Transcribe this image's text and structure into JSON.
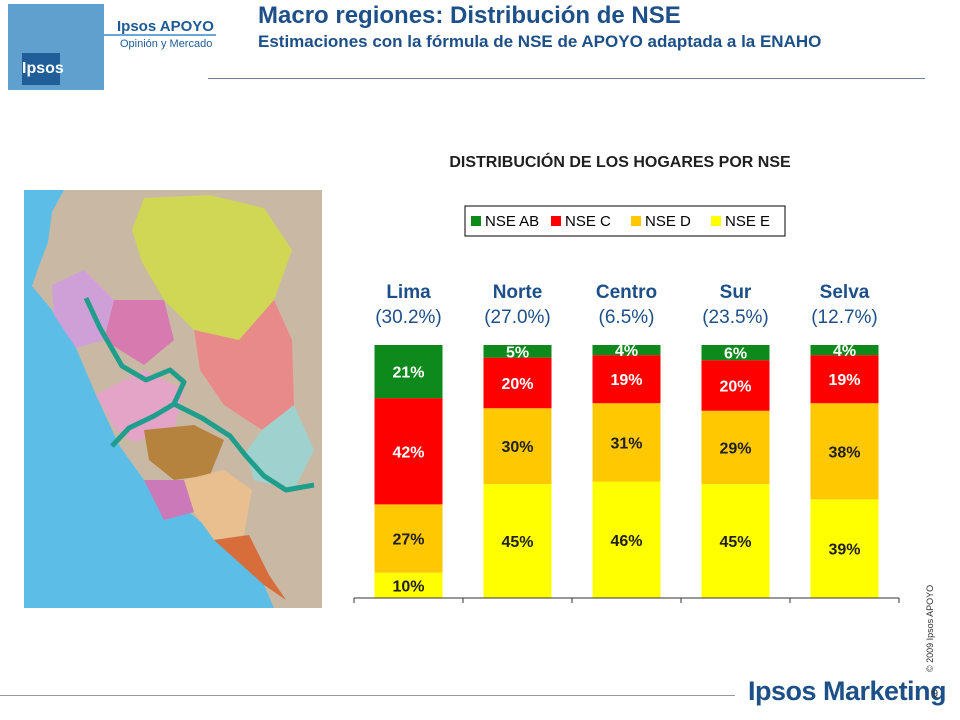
{
  "header": {
    "brand_name": "Ipsos APOYO",
    "brand_sub": "Opinión y Mercado",
    "logo_badge": "Ipsos",
    "title": "Macro regiones: Distribución de NSE",
    "subtitle": "Estimaciones con la fórmula de NSE de APOYO adaptada a la ENAHO"
  },
  "chart_title": "DISTRIBUCIÓN DE LOS HOGARES POR NSE",
  "footer": {
    "brand": "Ipsos Marketing",
    "copyright": "© 2009 Ipsos APOYO",
    "page_number": "9"
  },
  "colors": {
    "nse_ab": "#0d8a1b",
    "nse_c": "#ff0000",
    "nse_d": "#ffc800",
    "nse_e": "#ffff00",
    "ocean": "#5cbde6"
  },
  "chart_data": {
    "type": "bar",
    "stacked": true,
    "orientation": "vertical",
    "legend_position": "top",
    "categories": [
      "Lima",
      "Norte",
      "Centro",
      "Sur",
      "Selva"
    ],
    "category_shares": [
      "(30.2%)",
      "(27.0%)",
      "(6.5%)",
      "(23.5%)",
      "(12.7%)"
    ],
    "series": [
      {
        "name": "NSE E",
        "color": "#ffff00",
        "values": [
          10,
          45,
          46,
          45,
          39
        ],
        "labels": [
          "10%",
          "45%",
          "46%",
          "45%",
          "39%"
        ]
      },
      {
        "name": "NSE D",
        "color": "#ffc800",
        "values": [
          27,
          30,
          31,
          29,
          38
        ],
        "labels": [
          "27%",
          "30%",
          "31%",
          "29%",
          "38%"
        ]
      },
      {
        "name": "NSE C",
        "color": "#ff0000",
        "values": [
          42,
          20,
          19,
          20,
          19
        ],
        "labels": [
          "42%",
          "20%",
          "19%",
          "20%",
          "19%"
        ]
      },
      {
        "name": "NSE AB",
        "color": "#0d8a1b",
        "values": [
          21,
          5,
          4,
          6,
          4
        ],
        "labels": [
          "21%",
          "5%",
          "4%",
          "6%",
          "4%"
        ]
      }
    ],
    "legend_order": [
      "NSE AB",
      "NSE C",
      "NSE D",
      "NSE E"
    ],
    "ylim": [
      0,
      100
    ],
    "grid": false
  }
}
